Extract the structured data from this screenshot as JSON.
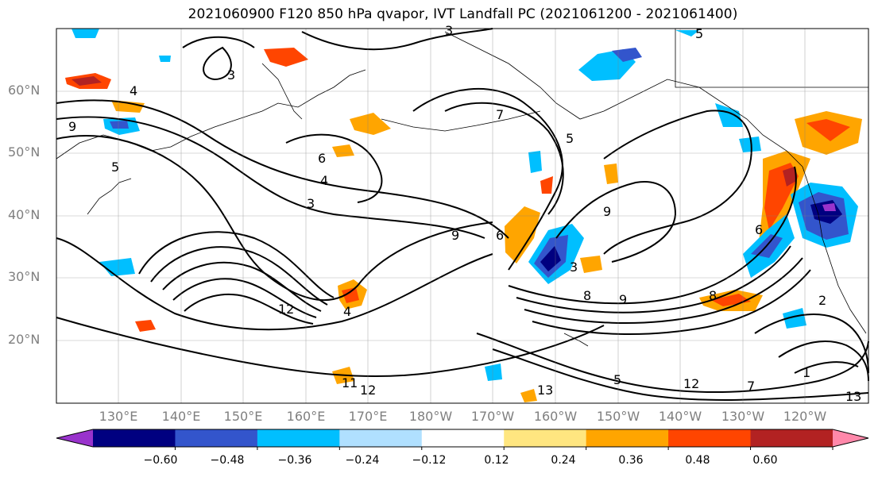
{
  "title": "2021060900 F120 850 hPa qvapor, IVT Landfall PC (2021061200 - 2021061400)",
  "latitude_labels": [
    "60°N",
    "50°N",
    "40°N",
    "30°N",
    "20°N"
  ],
  "longitude_labels": [
    "130°E",
    "140°E",
    "150°E",
    "160°E",
    "170°E",
    "180°W",
    "170°W",
    "160°W",
    "150°W",
    "140°W",
    "130°W",
    "120°W"
  ],
  "colorbar": {
    "colors": [
      "#9933cc",
      "#000080",
      "#3355cc",
      "#00bfff",
      "#b0e0ff",
      "#ffffff",
      "#ffe680",
      "#ffa500",
      "#ff4500",
      "#b22222",
      "#ff88aa"
    ],
    "tick_labels": [
      "−0.60",
      "−0.48",
      "−0.36",
      "−0.24",
      "−0.12",
      "0.12",
      "0.24",
      "0.36",
      "0.48",
      "0.60"
    ]
  },
  "contour_labels": [
    "4",
    "9",
    "3",
    "6",
    "5",
    "4",
    "3",
    "7",
    "5",
    "9",
    "12",
    "3",
    "6",
    "8",
    "9",
    "4",
    "11",
    "12",
    "13",
    "5",
    "12",
    "7",
    "13",
    "2",
    "1",
    "6",
    "8",
    "9",
    "5",
    "3"
  ]
}
